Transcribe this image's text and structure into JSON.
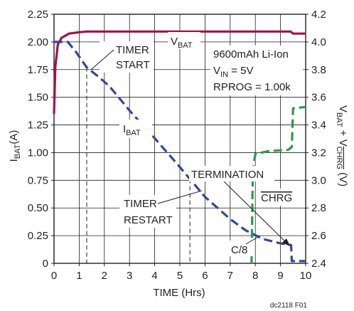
{
  "chart_data": {
    "type": "line",
    "x": {
      "label": "TIME (Hrs)",
      "range": [
        0,
        10
      ],
      "ticks": [
        0,
        1,
        2,
        3,
        4,
        5,
        6,
        7,
        8,
        9,
        10
      ]
    },
    "y_left": {
      "label_main": "I",
      "label_sub": "BAT",
      "label_unit": "(A)",
      "range": [
        0,
        2.25
      ],
      "ticks": [
        "0",
        "0.25",
        "0.50",
        "0.75",
        "1.00",
        "1.25",
        "1.50",
        "1.75",
        "2.00",
        "2.25"
      ]
    },
    "y_right": {
      "label_v1": "V",
      "label_s1": "BAT",
      "label_plus": " + V",
      "label_s2": "CHRG",
      "label_unit": " (V)",
      "range": [
        2.4,
        4.2
      ],
      "ticks": [
        "2.4",
        "2.6",
        "2.8",
        "3.0",
        "3.2",
        "3.4",
        "3.6",
        "3.8",
        "4.0",
        "4.2"
      ]
    },
    "grid": true,
    "series": [
      {
        "name": "VBAT",
        "axis": "right",
        "style": "solid",
        "color": "#a4123f",
        "points": [
          [
            0,
            3.48
          ],
          [
            0.05,
            3.82
          ],
          [
            0.15,
            3.98
          ],
          [
            0.3,
            4.03
          ],
          [
            0.6,
            4.06
          ],
          [
            1.0,
            4.07
          ],
          [
            1.3,
            4.075
          ],
          [
            2,
            4.075
          ],
          [
            5,
            4.075
          ],
          [
            8,
            4.075
          ],
          [
            9.4,
            4.075
          ],
          [
            9.5,
            4.06
          ],
          [
            10,
            4.06
          ]
        ]
      },
      {
        "name": "IBAT",
        "axis": "left",
        "style": "dashed",
        "color": "#2e4b9b",
        "points": [
          [
            0,
            2.0
          ],
          [
            0.55,
            2.0
          ],
          [
            0.9,
            1.9
          ],
          [
            1.3,
            1.77
          ],
          [
            1.8,
            1.68
          ],
          [
            2.2,
            1.6
          ],
          [
            3,
            1.38
          ],
          [
            4,
            1.13
          ],
          [
            5,
            0.87
          ],
          [
            6,
            0.6
          ],
          [
            7,
            0.4
          ],
          [
            7.6,
            0.3
          ],
          [
            8.3,
            0.22
          ],
          [
            9,
            0.18
          ],
          [
            9.42,
            0.165
          ],
          [
            9.45,
            0.02
          ],
          [
            10,
            0.02
          ]
        ]
      },
      {
        "name": "CHRG",
        "axis": "right",
        "style": "dashed",
        "color": "#2f9a48",
        "points": [
          [
            7.85,
            2.4
          ],
          [
            7.9,
            3.08
          ],
          [
            8.0,
            3.19
          ],
          [
            8.5,
            3.21
          ],
          [
            9.3,
            3.22
          ],
          [
            9.45,
            3.24
          ],
          [
            9.5,
            3.52
          ],
          [
            10,
            3.53
          ]
        ]
      }
    ],
    "annotations": {
      "vbat_main": "V",
      "vbat_sub": "BAT",
      "ibat_main": "I",
      "ibat_sub": "BAT",
      "timer_start": [
        "TIMER",
        "START"
      ],
      "timer_restart": [
        "TIMER",
        "RESTART"
      ],
      "battery": "9600mAh Li-Ion",
      "vin_main": "V",
      "vin_sub": "IN",
      "vin_value": " = 5V",
      "rprog": "RPROG = 1.00k",
      "termination": "TERMINATION",
      "chrg": "CHRG",
      "c8": "C/8",
      "figure_id": "dc2118 F01"
    },
    "markers": {
      "timer_start_x": 1.3,
      "timer_restart_x": 5.4
    }
  }
}
